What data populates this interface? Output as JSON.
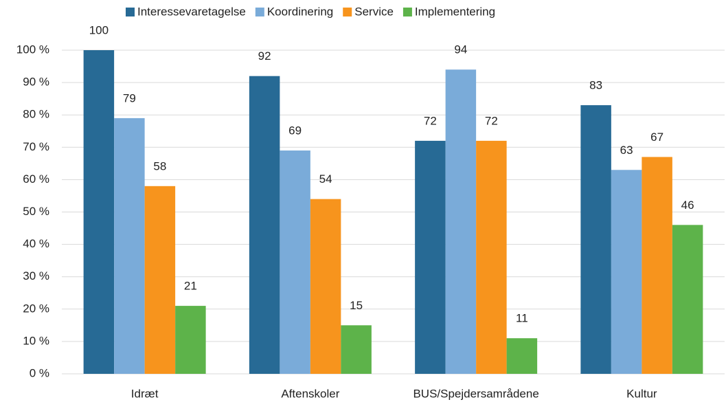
{
  "chart_data": {
    "type": "bar",
    "categories": [
      "Idræt",
      "Aftenskoler",
      "BUS/Spejdersamrådene",
      "Kultur"
    ],
    "series": [
      {
        "name": "Interessevaretagelse",
        "color": "#276a95",
        "values": [
          100,
          92,
          72,
          83
        ]
      },
      {
        "name": "Koordinering",
        "color": "#7aabd9",
        "values": [
          79,
          69,
          94,
          63
        ]
      },
      {
        "name": "Service",
        "color": "#f7941d",
        "values": [
          58,
          54,
          72,
          67
        ]
      },
      {
        "name": "Implementering",
        "color": "#5db34a",
        "values": [
          21,
          15,
          11,
          46
        ]
      }
    ],
    "ylim": [
      0,
      100
    ],
    "yticks": [
      {
        "value": 0,
        "label": "0 %"
      },
      {
        "value": 10,
        "label": "10 %"
      },
      {
        "value": 20,
        "label": "20 %"
      },
      {
        "value": 30,
        "label": "30 %"
      },
      {
        "value": 40,
        "label": "40 %"
      },
      {
        "value": 50,
        "label": "50 %"
      },
      {
        "value": 60,
        "label": "60 %"
      },
      {
        "value": 70,
        "label": "70 %"
      },
      {
        "value": 80,
        "label": "80 %"
      },
      {
        "value": 90,
        "label": "90 %"
      },
      {
        "value": 100,
        "label": "100 %"
      }
    ],
    "grid": true,
    "legend": "top"
  }
}
